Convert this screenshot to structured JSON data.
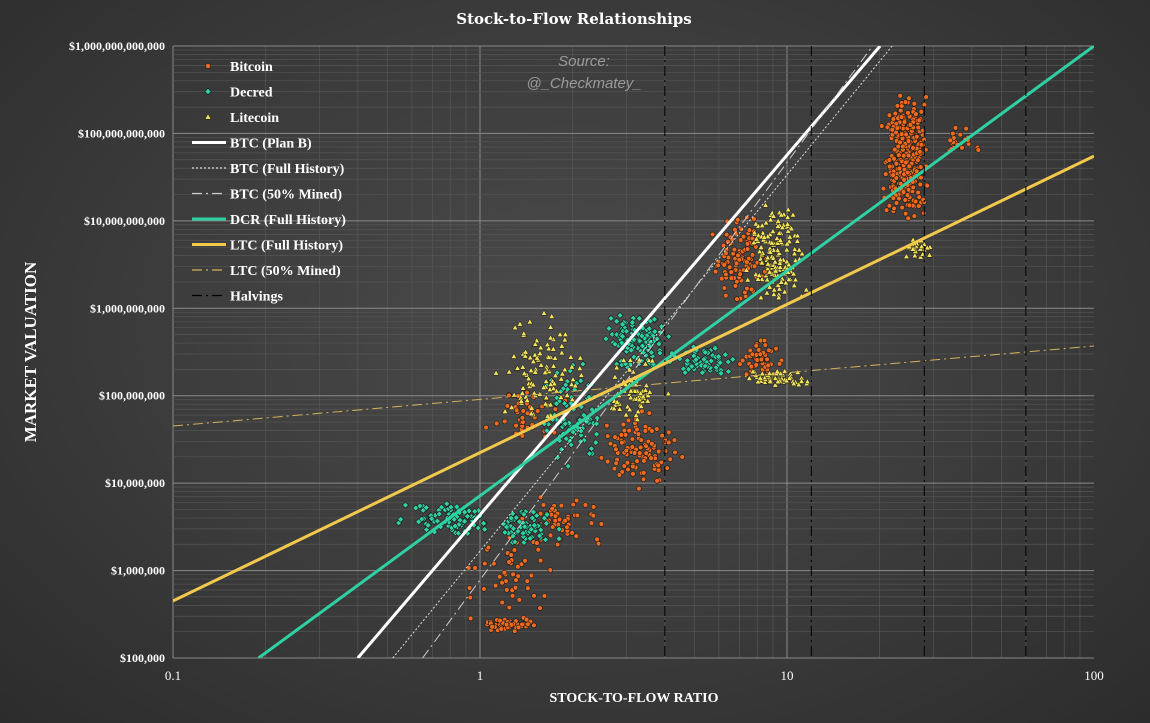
{
  "chart_data": {
    "type": "scatter",
    "title": "Stock-to-Flow Relationships",
    "xlabel": "STOCK-TO-FLOW RATIO",
    "ylabel": "MARKET VALUATION",
    "x_scale": "log",
    "y_scale": "log",
    "xlim": [
      0.1,
      100
    ],
    "ylim": [
      100000,
      1000000000000
    ],
    "x_ticks": [
      {
        "value": 0.1,
        "label": "0.1"
      },
      {
        "value": 1,
        "label": "1"
      },
      {
        "value": 10,
        "label": "10"
      },
      {
        "value": 100,
        "label": "100"
      }
    ],
    "y_ticks": [
      {
        "value": 100000,
        "label": "$100,000"
      },
      {
        "value": 1000000,
        "label": "$1,000,000"
      },
      {
        "value": 10000000,
        "label": "$10,000,000"
      },
      {
        "value": 100000000,
        "label": "$100,000,000"
      },
      {
        "value": 1000000000,
        "label": "$1,000,000,000"
      },
      {
        "value": 10000000000,
        "label": "$10,000,000,000"
      },
      {
        "value": 100000000000,
        "label": "$100,000,000,000"
      },
      {
        "value": 1000000000000,
        "label": "$1,000,000,000,000"
      }
    ],
    "grid": true,
    "legend_position": "top-left",
    "annotation": {
      "line1": "Source:",
      "line2": "@_Checkmatey_"
    },
    "series": [
      {
        "name": "Bitcoin",
        "kind": "scatter",
        "marker": "circle",
        "color": "#ee6a1e",
        "clusters": [
          {
            "sf_range": [
              0.9,
              1.6
            ],
            "value_range": [
              200000,
              300000
            ],
            "density": 60
          },
          {
            "sf_range": [
              0.85,
              1.9
            ],
            "value_range": [
              300000,
              3000000
            ],
            "density": 45
          },
          {
            "sf_range": [
              1.2,
              2.6
            ],
            "value_range": [
              1500000,
              8000000
            ],
            "density": 60
          },
          {
            "sf_range": [
              1.0,
              2.0
            ],
            "value_range": [
              30000000,
              120000000
            ],
            "density": 45
          },
          {
            "sf_range": [
              2.3,
              4.7
            ],
            "value_range": [
              8000000,
              80000000
            ],
            "density": 110
          },
          {
            "sf_range": [
              5.5,
              9.0
            ],
            "value_range": [
              1000000000,
              14000000000
            ],
            "density": 110
          },
          {
            "sf_range": [
              6.5,
              10.0
            ],
            "value_range": [
              150000000,
              450000000
            ],
            "density": 45
          },
          {
            "sf_range": [
              20.0,
              30.0
            ],
            "value_range": [
              10000000000,
              300000000000
            ],
            "density": 380
          },
          {
            "sf_range": [
              30.0,
              45.0
            ],
            "value_range": [
              60000000000,
              120000000000
            ],
            "density": 25
          }
        ]
      },
      {
        "name": "Decred",
        "kind": "scatter",
        "marker": "diamond",
        "color": "#2fd1a3",
        "clusters": [
          {
            "sf_range": [
              0.5,
              1.3
            ],
            "value_range": [
              2500000,
              6000000
            ],
            "density": 90
          },
          {
            "sf_range": [
              1.1,
              1.9
            ],
            "value_range": [
              1800000,
              5000000
            ],
            "density": 70
          },
          {
            "sf_range": [
              1.4,
              2.8
            ],
            "value_range": [
              15000000,
              250000000
            ],
            "density": 90
          },
          {
            "sf_range": [
              2.4,
              4.5
            ],
            "value_range": [
              200000000,
              900000000
            ],
            "density": 130
          },
          {
            "sf_range": [
              4.0,
              7.5
            ],
            "value_range": [
              150000000,
              400000000
            ],
            "density": 70
          }
        ]
      },
      {
        "name": "Litecoin",
        "kind": "scatter",
        "marker": "triangle",
        "color": "#f3e35a",
        "clusters": [
          {
            "sf_range": [
              1.1,
              2.3
            ],
            "value_range": [
              40000000,
              1000000000
            ],
            "density": 110
          },
          {
            "sf_range": [
              2.4,
              4.2
            ],
            "value_range": [
              40000000,
              300000000
            ],
            "density": 70
          },
          {
            "sf_range": [
              7.0,
              12.0
            ],
            "value_range": [
              1200000000,
              18000000000
            ],
            "density": 170
          },
          {
            "sf_range": [
              7.0,
              12.0
            ],
            "value_range": [
              130000000,
              200000000
            ],
            "density": 70
          },
          {
            "sf_range": [
              24.0,
              30.0
            ],
            "value_range": [
              3500000000,
              6500000000
            ],
            "density": 30
          }
        ]
      },
      {
        "name": "BTC (Plan B)",
        "kind": "line",
        "color": "#ffffff",
        "style": "solid",
        "width": 3,
        "points": [
          [
            0.4,
            100000
          ],
          [
            20.1,
            1000000000000
          ]
        ]
      },
      {
        "name": "BTC (Full History)",
        "kind": "line",
        "color": "#dddddd",
        "style": "dotted",
        "width": 1,
        "points": [
          [
            0.52,
            100000
          ],
          [
            22,
            1000000000000
          ]
        ]
      },
      {
        "name": "BTC (50% Mined)",
        "kind": "line",
        "color": "#cccccc",
        "style": "dashdot",
        "width": 1,
        "points": [
          [
            0.65,
            100000
          ],
          [
            19,
            1000000000000
          ]
        ]
      },
      {
        "name": "DCR (Full History)",
        "kind": "line",
        "color": "#2fd1a3",
        "style": "solid",
        "width": 3,
        "points": [
          [
            0.19,
            100000
          ],
          [
            100,
            1000000000000
          ]
        ]
      },
      {
        "name": "LTC (Full History)",
        "kind": "line",
        "color": "#f2c94c",
        "style": "solid",
        "width": 3,
        "points": [
          [
            0.1,
            450000
          ],
          [
            100,
            55000000000
          ]
        ]
      },
      {
        "name": "LTC (50% Mined)",
        "kind": "line",
        "color": "#d6b25a",
        "style": "dashdot",
        "width": 1,
        "points": [
          [
            0.1,
            45000000
          ],
          [
            100,
            370000000
          ]
        ]
      },
      {
        "name": "Halvings",
        "kind": "vlines",
        "color": "#000000",
        "style": "dashdot",
        "width": 1,
        "x": [
          4,
          12,
          28,
          60
        ]
      }
    ]
  }
}
